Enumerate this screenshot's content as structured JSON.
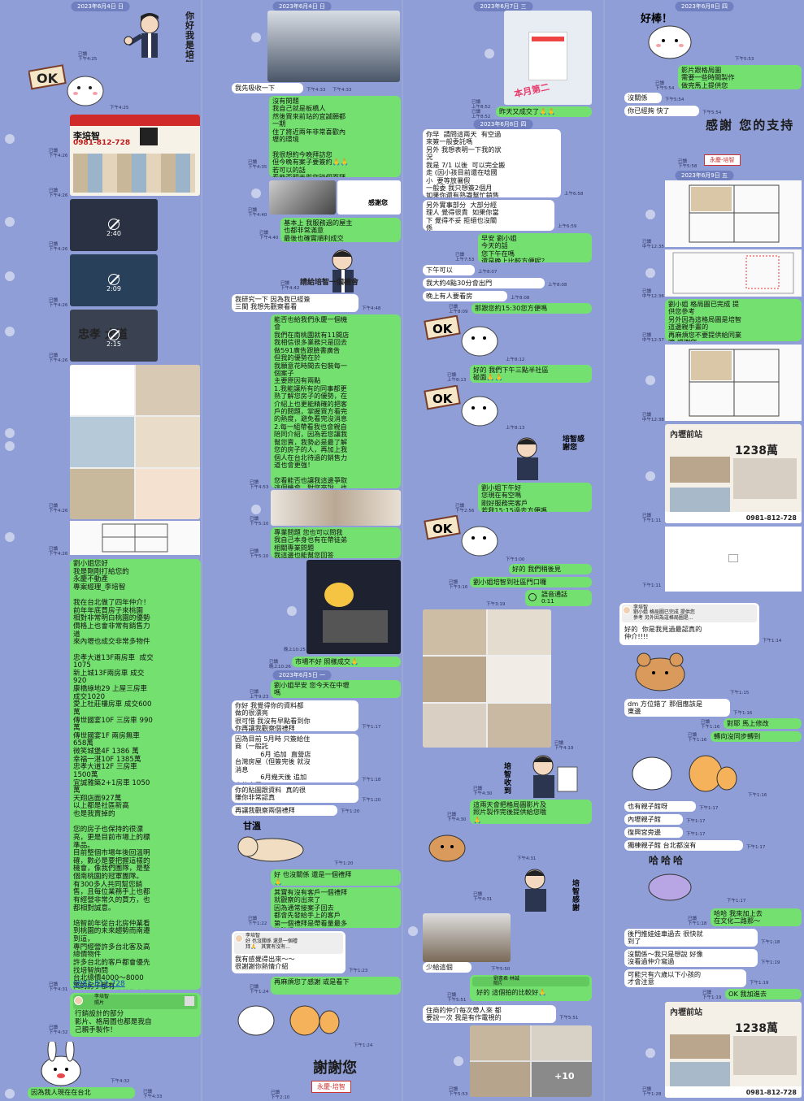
{
  "col1": {
    "date": "2023年6月4日 日",
    "sticker_hello": "你好 我是培智",
    "ts_read_1": "已讀\n下午4:25",
    "ts_ok": "下午4:25",
    "flyer_phone": "0981-812-728",
    "flyer_name": "李培智",
    "ts_flyer": "已讀\n下午4:26",
    "video1_duration": "2:40",
    "video2_duration": "2:09",
    "video3_duration": "2:15",
    "video3_overlay": "忠孝 大道",
    "ts_v1": "已讀\n下午4:26",
    "ts_v2": "已讀\n下午4:26",
    "ts_v3": "已讀\n下午4:26",
    "ts_imgs": "已讀\n下午4:26",
    "ts_imgs2": "已讀\n下午4:26",
    "long_msg": "劉小姐您好\n我是剛剛打給您的\n永慶不動產\n專案經理_李培智\n\n我在台北做了四年仲介！\n前年年底買房子來桃園\n相對非常明白桃園的優勢\n價格上也會非常有銷售力\n道\n來內壢也成交非常多物件\n\n忠孝大道13F兩房車  成交\n1075\n新上城13F兩房車 成交\n920\n康橋綠地29 上屋三房車\n成交1020\n愛上杜莊樓房車 成交600\n萬\n傳世國宴10F 三房車 990\n萬\n傳世國宴1F 兩房無車\n658萬\n微笑城堡4F 1386 萬\n幸福一湛10F 1385萬\n忠孝大道12F 三房車\n1500萬\n宜誠雅築2+1房車 1050\n萬\n天翔店面927萬\n以上都是社區新高\n也是我賣掉的\n\n您的房子也保持的很漂\n亮，更是目前市場上的標\n準品。\n目前整個市場年後回溫明\n確，數必是要把握這樣的\n機會，像我們團隊，是整\n個南桃園的冠軍團隊。\n有300多人共同幫您銷\n售，且每位業務手上也都\n有經營非常久的買方，也\n都相對誠意。\n\n培智前年從台北房仲業看\n到桃園的未來趨勢而南遷\n到這，\n專門經營許多台北客及高\n總價物件\n許多台北的客戶都會優先\n找培智詢問\n台北總價4000～8000\n萬的房子都有\n相對培智在這邊銷售力道\n也來得大\n也希望能爭取這樣的機會\n服務您🙏\n\n希望能有機會服務您\n專案經理_李培智",
    "long_phone": "0981-812-728",
    "ts_long": "已讀\n下午4:31",
    "reply_name": "李培智",
    "reply_quote": "照片",
    "reply_msg": "行銷設計的部分\n影片、格局圖也都是我自\n己親手製作！",
    "ts_reply": "已讀\n下午4:32",
    "ts_sticker_bunny": "下午4:32",
    "last_msg": "因為我人現在在台北",
    "ts_last": "已讀\n下午4:33"
  },
  "col2": {
    "date1": "2023年6月4日 日",
    "ts_photo1": "下午4:33",
    "msg_absorb": "我先吸收一下",
    "ts_absorb": "下午4:33",
    "msg_noproblem": "沒有問題\n我自己就是板橋人\n然後買來前站的宜誠願都\n一期\n住了將近兩年非常喜歡內\n壢的環境\n\n我很想約今晚拜訪您\n但今晚有案子要簽約🙏🙏\n若可以的話\n看能否明天與您碰個面拜\n訪您呢",
    "ts_noproblem": "已讀\n下午4:35",
    "ts_photo2": "已讀\n下午4:40",
    "sticker_thanks_label": "感謝您",
    "msg_basic": "基本上 我服務過的屋主\n也都非常滿意\n最後也確實順利成交",
    "ts_basic": "已讀\n下午4:40",
    "sticker_chance": "請給培智一個機會",
    "ts_chance": "已讀\n下午4:42",
    "msg_research": "我研究一下 因為我已經簽\n三間 我想先觀察看看",
    "ts_research": "下午4:48",
    "msg_long2": "能否也給我們永慶一個機\n會\n我們在南桃園就有11間店\n我相信很多業務只是回去\n做591廣告跟臉書廣告\n但我的優勢在於\n我願意花時間去包裝每一\n個案子\n主要原因有兩點\n1.我能讓所有的同事都更\n熟了解您房子的優勢，在\n介紹上也更能精確的把客\n戶的問題，掌握買方看完\n的熱度，避免看完沒消息\n2.每一組帶看我也會親自\n陪同介紹，因為若您讓我\n幫您賣，我勢必是最了解\n您的房子的人，再加上我\n個人在台北待過的銷售力\n道也會更強！\n\n您看能否也讓我這邊爭取\n這個機會，對您來說，也\n是有利無害的，更能增加\n成交的機會，也能賣漂亮\n的價格！",
    "ts_long2": "已讀\n下午4:53",
    "ts_team": "已讀\n下午5:10",
    "msg_prof": "專業問題 您也可以問我\n我自己本身也有在帶徒弟\n相關專業問題\n我這邊也能幫您回答",
    "ts_prof": "已讀\n下午5:10",
    "ts_screen": "晚上10:25",
    "msg_market": "市場不好 照樣成交🙏",
    "ts_market": "已讀\n晚上10:26",
    "date2": "2023年6月5日 一",
    "msg_morning": "劉小姐早安 您今天在中壢\n嗎",
    "ts_morning": "已讀\n上午9:23",
    "msg_good": "你好 我覺得你的資料都\n做的很漂亮\n很可惜 我沒有早點看到你\n你再讓我觀察個禮拜",
    "ts_good": "下午1:17",
    "msg_because": "因為目前 5月時 只簽給住\n商（一般託\n            6月 追加  直營店\n台灣房屋（但簽完後 就沒\n消息\n            6月幾天後 追加\n中信房屋",
    "ts_because": "下午1:18",
    "msg_real": "你的貼圖跟資料  真的很\n賺你非常認真",
    "ts_real": "下午1:20",
    "msg_observe": "再讓我觀察兩個禮拜",
    "ts_observe": "下午1:20",
    "sticker_sweet": "甘溫",
    "ts_sweet": "下午1:20",
    "msg_ok": "好 也沒關係 還是一個禮拜\n🙏",
    "msg_actually": "其實有沒有客戶一個禮拜\n就觀察的出來了\n因為通常接案子回去\n都會先發給手上的客戶\n第一個禮拜是帶看量最多\n的時候",
    "ts_actually": "已讀\n下午1:22",
    "reply_name": "李培智",
    "reply_quote": "好 也沒關係 還是一個禮\n拜🙏   其實有沒有...",
    "reply_msg": "我有感覺得出來～～\n很謝謝你熱情介紹",
    "ts_reply": "下午1:23",
    "msg_thanks": "再麻煩您了感謝 或是看下\n",
    "ts_thanks": "已讀\n下午1:24",
    "ts_sticker": "下午1:24",
    "sticker_thankyou": "謝謝您",
    "sticker_brand": "永慶-培智",
    "ts_final": "已讀\n下午2:10"
  },
  "col3": {
    "date1": "2023年6月7日 三",
    "phone_caption": "本月第二",
    "ts_phone": "已讀\n上午8:52",
    "msg_yesterday": "昨天又成交了🙏🙏",
    "ts_yesterday": "已讀\n上午8:52",
    "date2": "2023年6月8日 四",
    "msg_ask": "你早  請問這兩天  有空過\n來簽一般委託嗎\n另外 我想表明一下我的狀\n況\n我是 7/1 以後  可以完全搬\n走 (因小孩目前還在唸國\n小  要等放暑假\n一般委 我只想簽2個月\n如果你還有熟識幫忙銷售\n的話 再過來簽 也沒關係",
    "ts_ask": "上午6:58",
    "msg_other": "另外實事部分  大部分經\n理人 覺得很貴  如果你當\n下 覺得不妥 拒絕也沒關\n係",
    "ts_other": "上午6:59",
    "msg_morning": "早安 劉小姐\n今天的話\n您下午在嗎\n還是晚上比較方便呢？",
    "ts_morning": "已讀\n上午7:53",
    "msg_afternoon": "下午可以",
    "ts_afternoon": "上午8:07",
    "msg_about": "我大約4點30分會出門",
    "ts_about": "上午8:08",
    "msg_evening": "晚上有人要看房",
    "ts_evening": "上午8:08",
    "msg_1530": "那跟您約15:30您方便嗎",
    "ts_1530": "已讀\n上午8:09",
    "ts_ok1": "上午8:12",
    "msg_3pm": "好的 我們下午三點半社區\n碰面🙏🙏",
    "ts_3pm": "已讀\n上午8:13",
    "ts_ok2": "上午8:13",
    "sticker_thanks": "培智感謝您",
    "msg_liu": "劉小姐下午好\n您現在有空嗎\n剛好服務完客戶\n若我15:15過去方便嗎",
    "ts_liu": "已讀\n下午2:56",
    "ts_ok3": "下午3:00",
    "msg_see": "好的 我們稍後見",
    "ts_see": "已讀\n下午3:16",
    "msg_arrive": "劉小姐培智到社區門口囉",
    "ts_arrive": "已讀\n下午3:19",
    "call_label": "語音通話",
    "call_duration": "0:11",
    "ts_call": "下午3:19",
    "ts_photos": "已讀\n下午4:19",
    "sticker_received": "培智收到",
    "ts_received": "已讀\n下午4:30",
    "msg_tomorrow": "這兩天會把格局圖影片及\n照片製作完後提供給您哦\n🙏",
    "ts_tomorrow": "已讀\n下午4:30",
    "ts_bear": "下午4:31",
    "ts_thanks2": "已讀\n下午4:31",
    "msg_photo_caption": "少給這個",
    "ts_photo_caption": "下午5:50",
    "reply_name": "劉書君 林誠",
    "reply_quote": "照片",
    "msg_nice": "好的 這個拍的比較好🙏",
    "ts_nice": "已讀\n下午5:51",
    "msg_agent": "住商的仲介每次帶人來 都\n要說一次 我是有作電視的",
    "ts_agent": "下午5:51",
    "photo_count": "+10",
    "ts_grid": "已讀\n下午5:53"
  },
  "col4": {
    "date1": "2023年6月8日 四",
    "sticker_great": "好棒！",
    "ts_great": "下午5:53",
    "msg_video": "影片跟格局圖\n需要一些時間製作\n做完馬上提供您",
    "ts_video": "已讀\n下午5:54",
    "msg_noprob": "沒關係",
    "ts_noprob": "下午5:54",
    "msg_fast": "你已經夠 快了",
    "ts_fast": "下午5:54",
    "sticker_support": "感謝 您的支持",
    "sticker_brand": "永慶-培智",
    "ts_support": "已讀\n下午5:58",
    "date2": "2023年6月9日 五",
    "ts_plan1": "已讀\n中午12:35",
    "ts_plan2": "已讀\n中午12:36",
    "msg_plan": "劉小姐 格局圖已完成 提\n供您參考\n另外因為這格局圖是培智\n這邊親手畫的\n再麻煩您不要提供給同業\n唷 感謝您",
    "ts_plan": "已讀\n中午12:37",
    "ts_plan3": "已讀\n中午12:38",
    "card_title": "內壢前站",
    "card_price": "1238萬",
    "card_phone": "0981-812-728",
    "ts_card": "已讀\n下午1:11",
    "ts_blank": "下午1:11",
    "reply_name": "李培智",
    "reply_quote": "劉小姐 格局圖已完成 提供您\n參考 另外因為這格局圖是...",
    "reply_msg": "好的  你是我見過最認真的\n仲介!!!!",
    "ts_reply": "下午1:14",
    "ts_bear": "下午1:15",
    "msg_dm": "dm 方位錯了 那個應該是\n東邊",
    "ts_dm": "下午1:16",
    "msg_right": "對耶 馬上修改",
    "ts_right": "已讀\n下午1:16",
    "msg_turn": "轉向沒同步轉到",
    "ts_turn": "已讀\n下午1:16",
    "ts_dog": "下午1:16",
    "msg_kid": "也有親子館呀",
    "ts_kid": "下午1:17",
    "msg_neili": "內壢親子館",
    "ts_neili": "下午1:17",
    "msg_fuxing": "復興宮旁邊",
    "ts_fuxing": "下午1:17",
    "msg_only": "獨棟親子館 台北都沒有",
    "ts_only": "下午1:17",
    "sticker_haha": "哈哈哈",
    "ts_haha": "下午1:17",
    "msg_haha": "哈哈 我來加上去\n在文化二路那～",
    "ts_haha2": "已讀\n下午1:18",
    "msg_push": "後門推娃娃車過去 很快就\n到了",
    "ts_push": "下午1:18",
    "msg_relax": "沒關係～我只是想說 好像\n沒看過仲介寫過",
    "ts_relax": "下午1:19",
    "msg_six": "可能只有六歲以下小孩的\n才會注意",
    "ts_six": "下午1:19",
    "msg_okadd": "OK 我加進去",
    "ts_okadd": "已讀\n下午1:19",
    "card2_title": "內壢前站",
    "card2_price": "1238萬",
    "card2_phone": "0981-812-728",
    "ts_card2": "已讀\n下午1:28"
  },
  "colors": {
    "bg": "#8f9ed6",
    "green": "#74e06f",
    "white": "#ffffff",
    "date": "#6f7fbf"
  }
}
